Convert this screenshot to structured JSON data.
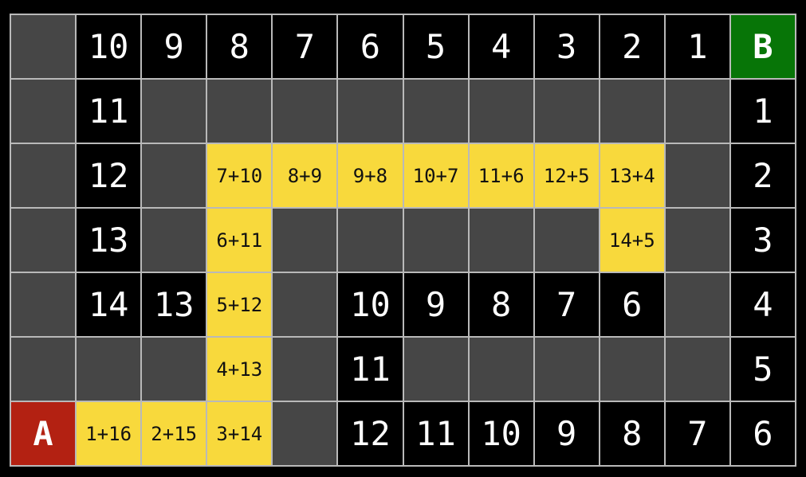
{
  "colors": {
    "page-bg": "#000000",
    "grid-line": "#b9b9b9",
    "blank-bg": "#464646",
    "number-bg": "#000000",
    "number-text": "#ffffff",
    "sum-bg": "#f8d93c",
    "sum-text": "#111111",
    "start-bg": "#b32112",
    "goal-bg": "#077507",
    "start-goal-text": "#ffffff"
  },
  "grid": {
    "columns": 12,
    "row_count": 7,
    "start_label": "A",
    "goal_label": "B",
    "rows": [
      [
        {
          "text": "",
          "type": "blank"
        },
        {
          "text": "10",
          "type": "number"
        },
        {
          "text": "9",
          "type": "number"
        },
        {
          "text": "8",
          "type": "number"
        },
        {
          "text": "7",
          "type": "number"
        },
        {
          "text": "6",
          "type": "number"
        },
        {
          "text": "5",
          "type": "number"
        },
        {
          "text": "4",
          "type": "number"
        },
        {
          "text": "3",
          "type": "number"
        },
        {
          "text": "2",
          "type": "number"
        },
        {
          "text": "1",
          "type": "number"
        },
        {
          "text": "B",
          "type": "goal"
        }
      ],
      [
        {
          "text": "",
          "type": "blank"
        },
        {
          "text": "11",
          "type": "number"
        },
        {
          "text": "",
          "type": "blank"
        },
        {
          "text": "",
          "type": "blank"
        },
        {
          "text": "",
          "type": "blank"
        },
        {
          "text": "",
          "type": "blank"
        },
        {
          "text": "",
          "type": "blank"
        },
        {
          "text": "",
          "type": "blank"
        },
        {
          "text": "",
          "type": "blank"
        },
        {
          "text": "",
          "type": "blank"
        },
        {
          "text": "",
          "type": "blank"
        },
        {
          "text": "1",
          "type": "number"
        }
      ],
      [
        {
          "text": "",
          "type": "blank"
        },
        {
          "text": "12",
          "type": "number"
        },
        {
          "text": "",
          "type": "blank"
        },
        {
          "text": "7+10",
          "type": "sum"
        },
        {
          "text": "8+9",
          "type": "sum"
        },
        {
          "text": "9+8",
          "type": "sum"
        },
        {
          "text": "10+7",
          "type": "sum"
        },
        {
          "text": "11+6",
          "type": "sum"
        },
        {
          "text": "12+5",
          "type": "sum"
        },
        {
          "text": "13+4",
          "type": "sum"
        },
        {
          "text": "",
          "type": "blank"
        },
        {
          "text": "2",
          "type": "number"
        }
      ],
      [
        {
          "text": "",
          "type": "blank"
        },
        {
          "text": "13",
          "type": "number"
        },
        {
          "text": "",
          "type": "blank"
        },
        {
          "text": "6+11",
          "type": "sum"
        },
        {
          "text": "",
          "type": "blank"
        },
        {
          "text": "",
          "type": "blank"
        },
        {
          "text": "",
          "type": "blank"
        },
        {
          "text": "",
          "type": "blank"
        },
        {
          "text": "",
          "type": "blank"
        },
        {
          "text": "14+5",
          "type": "sum"
        },
        {
          "text": "",
          "type": "blank"
        },
        {
          "text": "3",
          "type": "number"
        }
      ],
      [
        {
          "text": "",
          "type": "blank"
        },
        {
          "text": "14",
          "type": "number"
        },
        {
          "text": "13",
          "type": "number"
        },
        {
          "text": "5+12",
          "type": "sum"
        },
        {
          "text": "",
          "type": "blank"
        },
        {
          "text": "10",
          "type": "number"
        },
        {
          "text": "9",
          "type": "number"
        },
        {
          "text": "8",
          "type": "number"
        },
        {
          "text": "7",
          "type": "number"
        },
        {
          "text": "6",
          "type": "number"
        },
        {
          "text": "",
          "type": "blank"
        },
        {
          "text": "4",
          "type": "number"
        }
      ],
      [
        {
          "text": "",
          "type": "blank"
        },
        {
          "text": "",
          "type": "blank"
        },
        {
          "text": "",
          "type": "blank"
        },
        {
          "text": "4+13",
          "type": "sum"
        },
        {
          "text": "",
          "type": "blank"
        },
        {
          "text": "11",
          "type": "number"
        },
        {
          "text": "",
          "type": "blank"
        },
        {
          "text": "",
          "type": "blank"
        },
        {
          "text": "",
          "type": "blank"
        },
        {
          "text": "",
          "type": "blank"
        },
        {
          "text": "",
          "type": "blank"
        },
        {
          "text": "5",
          "type": "number"
        }
      ],
      [
        {
          "text": "A",
          "type": "start"
        },
        {
          "text": "1+16",
          "type": "sum"
        },
        {
          "text": "2+15",
          "type": "sum"
        },
        {
          "text": "3+14",
          "type": "sum"
        },
        {
          "text": "",
          "type": "blank"
        },
        {
          "text": "12",
          "type": "number"
        },
        {
          "text": "11",
          "type": "number"
        },
        {
          "text": "10",
          "type": "number"
        },
        {
          "text": "9",
          "type": "number"
        },
        {
          "text": "8",
          "type": "number"
        },
        {
          "text": "7",
          "type": "number"
        },
        {
          "text": "6",
          "type": "number"
        }
      ]
    ]
  }
}
